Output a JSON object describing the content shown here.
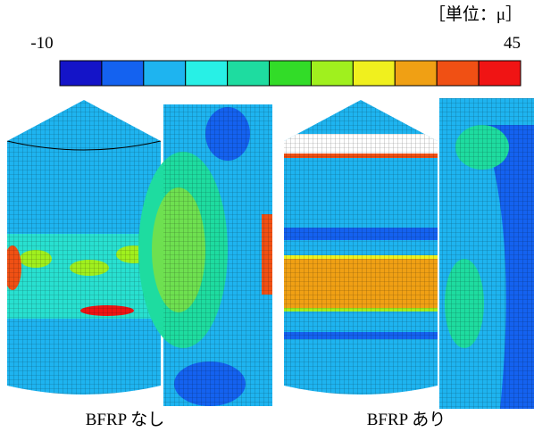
{
  "legend": {
    "unit": "［単位：μ］",
    "min_label": "-10",
    "max_label": "45",
    "colors": [
      "#1414c8",
      "#1462f0",
      "#1eb4f0",
      "#28f0e6",
      "#1edca0",
      "#32dc28",
      "#a0f01e",
      "#f0f01e",
      "#f0a014",
      "#f05014",
      "#f01414"
    ]
  },
  "captions": [
    "BFRP なし",
    "BFRP あり"
  ]
}
